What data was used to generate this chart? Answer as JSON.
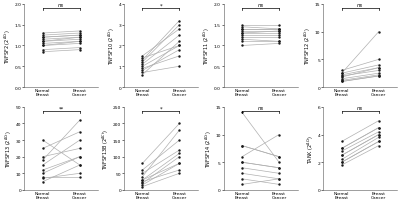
{
  "panels": [
    {
      "ylabel": "TNFSF2 (2$^{ΔCt}$)",
      "sig": "ns",
      "ylim": [
        0.0,
        2.0
      ],
      "yticks": [
        0.0,
        0.5,
        1.0,
        1.5,
        2.0
      ],
      "normal": [
        1.1,
        1.0,
        1.2,
        1.15,
        1.3,
        1.05,
        1.25,
        0.85,
        0.9,
        1.1,
        1.2,
        1.0
      ],
      "cancer": [
        1.2,
        1.1,
        1.25,
        1.2,
        1.35,
        1.1,
        1.3,
        0.9,
        0.95,
        1.15,
        1.25,
        1.05
      ]
    },
    {
      "ylabel": "TNFSF10 (2$^{ΔCt}$)",
      "sig": "*",
      "ylim": [
        0,
        4
      ],
      "yticks": [
        0,
        1,
        2,
        3,
        4
      ],
      "normal": [
        0.9,
        1.0,
        0.8,
        1.1,
        0.7,
        1.2,
        0.6,
        1.3,
        1.5,
        1.4
      ],
      "cancer": [
        1.5,
        2.0,
        1.8,
        2.5,
        1.0,
        3.0,
        2.2,
        3.2,
        2.8,
        2.0
      ]
    },
    {
      "ylabel": "TNFSF11 (2$^{ΔCt}$)",
      "sig": "ns",
      "ylim": [
        0.0,
        2.0
      ],
      "yticks": [
        0.0,
        0.5,
        1.0,
        1.5,
        2.0
      ],
      "normal": [
        1.2,
        1.3,
        1.4,
        1.5,
        1.1,
        1.35,
        1.45,
        1.0,
        1.25,
        1.3,
        1.15,
        1.4
      ],
      "cancer": [
        1.2,
        1.35,
        1.4,
        1.5,
        1.1,
        1.35,
        1.4,
        1.05,
        1.25,
        1.3,
        1.1,
        1.4
      ]
    },
    {
      "ylabel": "TNFSF12 (2$^{ΔCt}$)",
      "sig": "ns",
      "ylim": [
        0,
        15
      ],
      "yticks": [
        0,
        5,
        10,
        15
      ],
      "normal": [
        1.0,
        2.0,
        1.5,
        2.5,
        1.2,
        1.8,
        3.0,
        2.2,
        1.0,
        2.5
      ],
      "cancer": [
        2.0,
        3.0,
        2.5,
        4.0,
        2.2,
        3.5,
        5.0,
        3.5,
        2.0,
        10.0
      ]
    },
    {
      "ylabel": "TNFSF13 (2$^{ΔCt}$)",
      "sig": "**",
      "ylim": [
        0,
        50
      ],
      "yticks": [
        0,
        10,
        20,
        30,
        40,
        50
      ],
      "normal": [
        30,
        20,
        10,
        15,
        25,
        5,
        8,
        12,
        18,
        7
      ],
      "cancer": [
        15,
        25,
        20,
        30,
        35,
        15,
        8,
        20,
        42,
        10
      ]
    },
    {
      "ylabel": "TNFSF13B (2$^{ΔCt}$)",
      "sig": "*",
      "ylim": [
        0,
        250
      ],
      "yticks": [
        0,
        50,
        100,
        150,
        200,
        250
      ],
      "normal": [
        30,
        20,
        50,
        60,
        15,
        25,
        10,
        80,
        40,
        30
      ],
      "cancer": [
        80,
        100,
        120,
        150,
        80,
        60,
        50,
        200,
        180,
        110
      ]
    },
    {
      "ylabel": "TNFSF14 (2$^{ΔCt}$)",
      "sig": "ns",
      "ylim": [
        0,
        15
      ],
      "yticks": [
        0,
        5,
        10,
        15
      ],
      "normal": [
        14,
        8,
        5,
        3,
        4,
        6,
        2,
        1,
        5,
        8
      ],
      "cancer": [
        5,
        6,
        4,
        2,
        3,
        10,
        1,
        2,
        4,
        6
      ]
    },
    {
      "ylabel": "TANK (2$^{ΔCt}$)",
      "sig": "ns",
      "ylim": [
        0,
        6
      ],
      "yticks": [
        0,
        2,
        4,
        6
      ],
      "normal": [
        2.0,
        2.5,
        3.0,
        2.2,
        1.8,
        2.8,
        3.5,
        2.0,
        2.5,
        3.0
      ],
      "cancer": [
        3.5,
        4.0,
        4.5,
        3.8,
        3.2,
        4.2,
        5.0,
        3.5,
        4.0,
        4.5
      ]
    }
  ],
  "xticklabels": [
    "Normal\nBreast",
    "Breast\nCancer"
  ],
  "line_color": "#b0b0b0",
  "dot_color": "#1a1a1a",
  "background": "#ffffff",
  "fig_width": 4.0,
  "fig_height": 2.03,
  "dpi": 100
}
